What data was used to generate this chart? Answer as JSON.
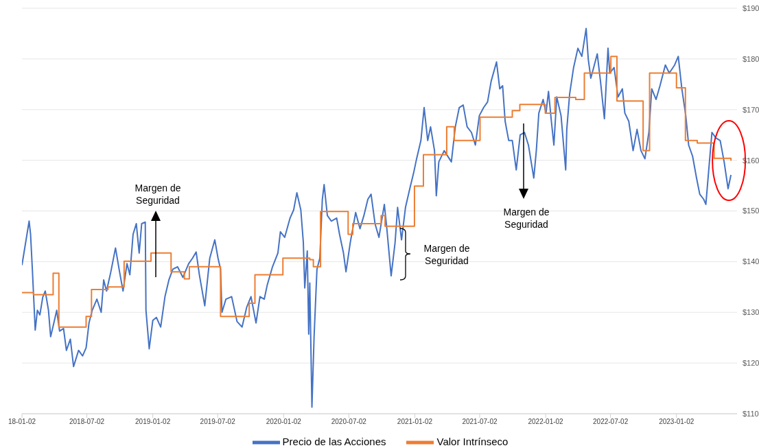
{
  "chart_data": {
    "type": "line",
    "xlim": [
      "2018-01-02",
      "2023-06-20"
    ],
    "xticks": [
      {
        "value": "2018-01-02",
        "label": "18-01-02"
      },
      {
        "value": "2018-07-02",
        "label": "2018-07-02"
      },
      {
        "value": "2019-01-02",
        "label": "2019-01-02"
      },
      {
        "value": "2019-07-02",
        "label": "2019-07-02"
      },
      {
        "value": "2020-01-02",
        "label": "2020-01-02"
      },
      {
        "value": "2020-07-02",
        "label": "2020-07-02"
      },
      {
        "value": "2021-01-02",
        "label": "2021-01-02"
      },
      {
        "value": "2021-07-02",
        "label": "2021-07-02"
      },
      {
        "value": "2022-01-02",
        "label": "2022-01-02"
      },
      {
        "value": "2022-07-02",
        "label": "2022-07-02"
      },
      {
        "value": "2023-01-02",
        "label": "2023-01-02"
      }
    ],
    "ylim": [
      110,
      190
    ],
    "yticks": [
      {
        "value": 110,
        "label": "$110"
      },
      {
        "value": 120,
        "label": "$120"
      },
      {
        "value": 130,
        "label": "$130"
      },
      {
        "value": 140,
        "label": "$140"
      },
      {
        "value": 150,
        "label": "$150"
      },
      {
        "value": 160,
        "label": "$160"
      },
      {
        "value": 170,
        "label": "$170"
      },
      {
        "value": 180,
        "label": "$180"
      },
      {
        "value": 190,
        "label": "$190"
      }
    ],
    "grid": "y",
    "legend": "bottom",
    "series": [
      {
        "name": "Precio de las Acciones",
        "color": "#4472c4",
        "type": "line",
        "x": [
          "2018-01-02",
          "2018-01-22",
          "2018-01-26",
          "2018-01-31",
          "2018-02-08",
          "2018-02-14",
          "2018-02-21",
          "2018-03-01",
          "2018-03-08",
          "2018-03-17",
          "2018-03-23",
          "2018-04-01",
          "2018-04-09",
          "2018-04-17",
          "2018-04-28",
          "2018-05-06",
          "2018-05-17",
          "2018-05-26",
          "2018-06-09",
          "2018-06-20",
          "2018-06-30",
          "2018-07-08",
          "2018-07-17",
          "2018-07-30",
          "2018-08-11",
          "2018-08-18",
          "2018-08-26",
          "2018-09-07",
          "2018-09-20",
          "2018-09-30",
          "2018-10-11",
          "2018-10-22",
          "2018-10-30",
          "2018-11-08",
          "2018-11-17",
          "2018-11-25",
          "2018-12-02",
          "2018-12-12",
          "2018-12-14",
          "2018-12-23",
          "2019-01-02",
          "2019-01-12",
          "2019-01-24",
          "2019-02-05",
          "2019-02-16",
          "2019-02-27",
          "2019-03-12",
          "2019-03-27",
          "2019-04-12",
          "2019-04-23",
          "2019-05-03",
          "2019-05-12",
          "2019-05-27",
          "2019-06-10",
          "2019-06-24",
          "2019-07-03",
          "2019-07-10",
          "2019-07-14",
          "2019-07-25",
          "2019-08-10",
          "2019-08-25",
          "2019-09-08",
          "2019-09-21",
          "2019-10-03",
          "2019-10-17",
          "2019-10-28",
          "2019-11-09",
          "2019-11-17",
          "2019-12-02",
          "2019-12-17",
          "2019-12-24",
          "2020-01-05",
          "2020-01-20",
          "2020-01-30",
          "2020-02-08",
          "2020-02-19",
          "2020-02-26",
          "2020-03-01",
          "2020-03-08",
          "2020-03-12",
          "2020-03-15",
          "2020-03-21",
          "2020-03-27",
          "2020-04-04",
          "2020-04-12",
          "2020-04-19",
          "2020-04-24",
          "2020-05-03",
          "2020-05-14",
          "2020-05-29",
          "2020-06-06",
          "2020-06-17",
          "2020-06-24",
          "2020-07-06",
          "2020-07-21",
          "2020-08-02",
          "2020-08-13",
          "2020-08-24",
          "2020-09-02",
          "2020-09-13",
          "2020-09-24",
          "2020-10-09",
          "2020-10-16",
          "2020-10-28",
          "2020-11-08",
          "2020-11-15",
          "2020-11-26",
          "2020-12-07",
          "2020-12-19",
          "2020-12-30",
          "2021-01-07",
          "2021-01-19",
          "2021-01-28",
          "2021-02-07",
          "2021-02-15",
          "2021-02-26",
          "2021-03-03",
          "2021-03-10",
          "2021-03-25",
          "2021-04-14",
          "2021-04-25",
          "2021-05-06",
          "2021-05-17",
          "2021-05-28",
          "2021-06-09",
          "2021-06-20",
          "2021-07-01",
          "2021-07-13",
          "2021-07-24",
          "2021-08-03",
          "2021-08-18",
          "2021-08-27",
          "2021-09-04",
          "2021-09-11",
          "2021-09-21",
          "2021-10-01",
          "2021-10-12",
          "2021-10-23",
          "2021-11-04",
          "2021-11-15",
          "2021-11-30",
          "2021-12-07",
          "2021-12-14",
          "2021-12-26",
          "2022-01-03",
          "2022-01-10",
          "2022-01-18",
          "2022-01-25",
          "2022-02-02",
          "2022-02-14",
          "2022-02-27",
          "2022-03-02",
          "2022-03-10",
          "2022-03-21",
          "2022-04-02",
          "2022-04-13",
          "2022-04-25",
          "2022-05-01",
          "2022-05-08",
          "2022-05-16",
          "2022-05-26",
          "2022-06-04",
          "2022-06-15",
          "2022-06-25",
          "2022-06-30",
          "2022-07-12",
          "2022-07-23",
          "2022-08-04",
          "2022-08-11",
          "2022-08-22",
          "2022-09-03",
          "2022-09-14",
          "2022-09-25",
          "2022-10-06",
          "2022-10-17",
          "2022-10-25",
          "2022-11-06",
          "2022-11-17",
          "2022-12-02",
          "2022-12-13",
          "2022-12-28",
          "2023-01-07",
          "2023-01-17",
          "2023-01-28",
          "2023-02-05",
          "2023-02-16",
          "2023-02-27",
          "2023-03-08",
          "2023-03-19",
          "2023-03-25",
          "2023-04-04",
          "2023-04-11",
          "2023-04-22",
          "2023-05-04",
          "2023-05-15",
          "2023-05-26",
          "2023-06-03"
        ],
        "values": [
          139.3,
          148,
          145.4,
          138.5,
          126.5,
          130.4,
          129.5,
          133,
          134.2,
          130.4,
          125.2,
          127.9,
          130.4,
          126.3,
          126.8,
          122.5,
          124.7,
          119.3,
          122.5,
          121.4,
          123,
          127.9,
          130.4,
          132.6,
          130,
          136.4,
          134.2,
          138,
          142.7,
          138.5,
          134.2,
          139.6,
          137.4,
          145.4,
          147.5,
          141.7,
          147.5,
          147.8,
          130.4,
          122.8,
          128.4,
          129,
          127.1,
          133.1,
          136.4,
          138.5,
          139,
          136.9,
          139.6,
          140.7,
          141.9,
          137.4,
          131.3,
          140.7,
          144.3,
          140.7,
          138.5,
          130,
          132.6,
          133.1,
          128.2,
          127.1,
          131,
          133.1,
          127.9,
          133.1,
          132.6,
          135.3,
          139,
          141.7,
          145.9,
          144.8,
          148.6,
          150.2,
          153.6,
          150.2,
          143.8,
          134.8,
          142.1,
          125.7,
          135.8,
          111.3,
          125.2,
          138.5,
          140.7,
          152.3,
          155.2,
          149.1,
          148,
          148.6,
          145.4,
          141.7,
          138,
          143.8,
          149.7,
          146.5,
          149.1,
          152.3,
          153.3,
          147.5,
          144.8,
          151.3,
          146.5,
          137.2,
          143.8,
          150.7,
          144.3,
          150.7,
          154.4,
          157.6,
          160.3,
          163.9,
          170.4,
          163.9,
          166.6,
          161.9,
          153,
          159.7,
          161.9,
          159.7,
          166.6,
          170.4,
          170.9,
          166.6,
          165.5,
          163,
          168.8,
          170.4,
          171.5,
          175.6,
          179.4,
          174.1,
          174.7,
          167.7,
          163.9,
          163.9,
          158.1,
          165,
          165.5,
          163,
          156.5,
          161.9,
          169.3,
          172,
          169.3,
          173.6,
          167.7,
          163,
          172.5,
          168.8,
          158.1,
          166.1,
          173.1,
          178.3,
          182.1,
          180.5,
          186,
          179.9,
          176.2,
          178.3,
          181,
          175.6,
          168.2,
          182.1,
          177.2,
          178.3,
          172.5,
          174.1,
          169.3,
          167.7,
          161.9,
          166.1,
          161.9,
          160.3,
          165.5,
          174.1,
          172,
          174.7,
          178.8,
          177.2,
          178.8,
          180.5,
          174.1,
          168.8,
          163,
          160.8,
          156.5,
          153.3,
          152.3,
          151.3,
          159.7,
          165.5,
          164.4,
          163.9,
          159.7,
          154.4,
          157.1
        ]
      },
      {
        "name": "Valor Intrínseco",
        "color": "#ed7d31",
        "type": "step",
        "x": [
          "2018-01-02",
          "2018-02-03",
          "2018-03-30",
          "2018-04-15",
          "2018-06-30",
          "2018-07-15",
          "2018-08-30",
          "2018-10-14",
          "2018-12-28",
          "2019-02-22",
          "2019-03-31",
          "2019-04-14",
          "2019-07-10",
          "2019-09-28",
          "2019-10-14",
          "2019-12-31",
          "2020-03-15",
          "2020-03-25",
          "2020-04-14",
          "2020-06-30",
          "2020-07-13",
          "2020-09-30",
          "2020-10-11",
          "2021-01-01",
          "2021-01-26",
          "2021-04-01",
          "2021-04-22",
          "2021-07-03",
          "2021-10-01",
          "2021-10-22",
          "2022-01-01",
          "2022-01-28",
          "2022-03-27",
          "2022-04-20",
          "2022-07-03",
          "2022-07-20",
          "2022-10-01",
          "2022-10-19",
          "2023-01-02",
          "2023-01-27",
          "2023-03-01",
          "2023-04-17",
          "2023-06-03"
        ],
        "values": [
          133.9,
          133.5,
          137.7,
          127.1,
          129.2,
          134.5,
          135,
          140.1,
          141.7,
          138,
          136.6,
          139,
          129.2,
          131.8,
          137.4,
          140.7,
          140.4,
          139,
          149.9,
          145.4,
          147.5,
          149.1,
          147,
          154.9,
          161.1,
          166.6,
          163.9,
          168.5,
          169.8,
          171,
          169.3,
          172.4,
          172,
          177.2,
          180.5,
          171.7,
          161.9,
          177.2,
          174.3,
          163.9,
          163.4,
          160.4,
          159.9
        ]
      }
    ],
    "annotations": [
      "Margen de Seguridad",
      "Margen de Seguridad",
      "Margen de Seguridad"
    ]
  }
}
